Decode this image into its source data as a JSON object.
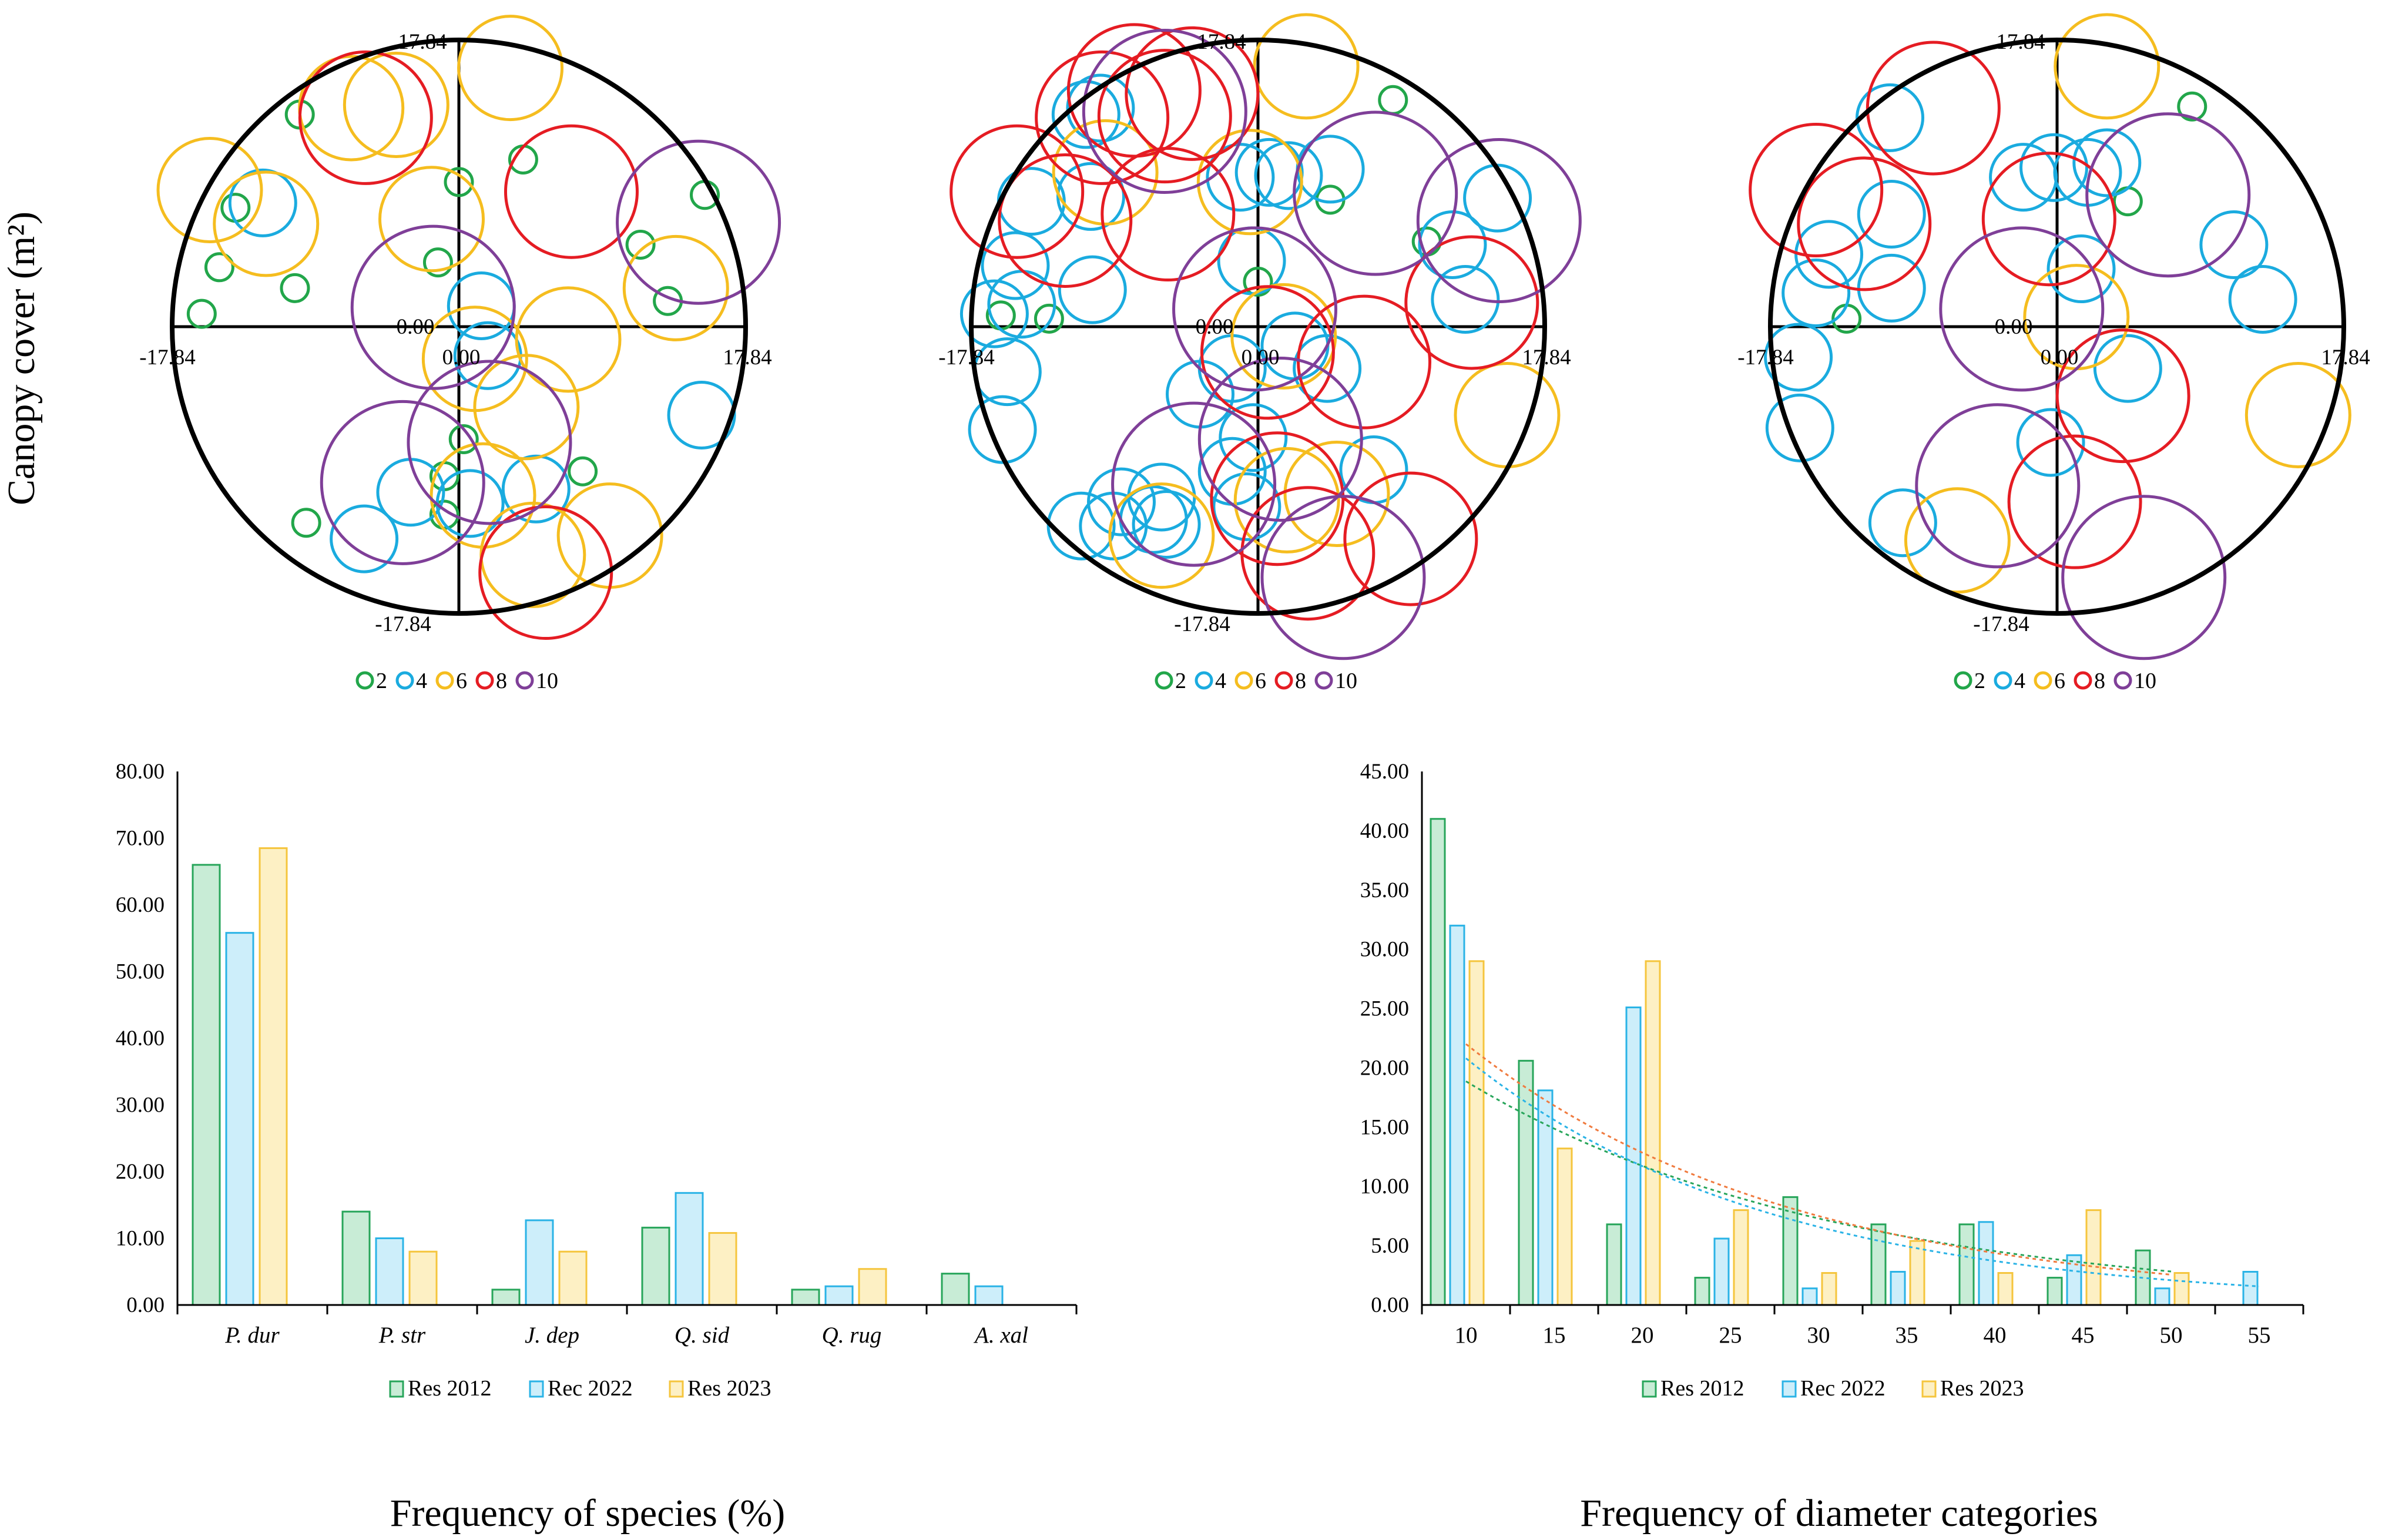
{
  "figure": {
    "y_axis_label": "Canopy cover (m²)",
    "caption_left": "Frequency of species (%)",
    "caption_right": "Frequency of diameter categories"
  },
  "colors": {
    "2": "#22a64a",
    "4": "#1aabdf",
    "6": "#f5bd1f",
    "8": "#e51c23",
    "10": "#7f3f98",
    "res2012_fill": "#c8ecd6",
    "res2012_stroke": "#27a55a",
    "rec2022_fill": "#cdeefa",
    "rec2022_stroke": "#2ab3e6",
    "res2023_fill": "#fdf0c4",
    "res2023_stroke": "#f5c53d",
    "trend_2012": "#27a55a",
    "trend_2022": "#2ab3e6",
    "trend_2023": "#f07a3e"
  },
  "chart_data": [
    {
      "type": "scatter",
      "subtype": "bubble-plot",
      "xlim": [
        -17.84,
        17.84
      ],
      "ylim": [
        -17.84,
        17.84
      ],
      "tick_labels": {
        "top": "17.84",
        "bottom": "-17.84",
        "left": "-17.84",
        "right": "17.84",
        "origin": "0.00"
      },
      "legend": [
        "2",
        "4",
        "6",
        "8",
        "10"
      ],
      "points": [
        {
          "x": -9.9,
          "y": 13.2,
          "size": "2"
        },
        {
          "x": -13.9,
          "y": 7.4,
          "size": "2"
        },
        {
          "x": -14.9,
          "y": 3.7,
          "size": "2"
        },
        {
          "x": -16.0,
          "y": 0.8,
          "size": "2"
        },
        {
          "x": -10.2,
          "y": 2.4,
          "size": "2"
        },
        {
          "x": -1.3,
          "y": 4.0,
          "size": "2"
        },
        {
          "x": 0.0,
          "y": 9.0,
          "size": "2"
        },
        {
          "x": 4.0,
          "y": 10.4,
          "size": "2"
        },
        {
          "x": 11.3,
          "y": 5.1,
          "size": "2"
        },
        {
          "x": 13.0,
          "y": 1.6,
          "size": "2"
        },
        {
          "x": 15.3,
          "y": 8.2,
          "size": "2"
        },
        {
          "x": 0.3,
          "y": -7.0,
          "size": "2"
        },
        {
          "x": -0.9,
          "y": -9.3,
          "size": "2"
        },
        {
          "x": -0.9,
          "y": -11.7,
          "size": "2"
        },
        {
          "x": 7.7,
          "y": -9.0,
          "size": "2"
        },
        {
          "x": -9.5,
          "y": -12.2,
          "size": "2"
        },
        {
          "x": -12.2,
          "y": 7.7,
          "size": "4"
        },
        {
          "x": 1.4,
          "y": 1.3,
          "size": "4"
        },
        {
          "x": 1.8,
          "y": -1.8,
          "size": "4"
        },
        {
          "x": 15.1,
          "y": -5.5,
          "size": "4"
        },
        {
          "x": -3.0,
          "y": -10.3,
          "size": "4"
        },
        {
          "x": -5.9,
          "y": -13.2,
          "size": "4"
        },
        {
          "x": 4.8,
          "y": -10.1,
          "size": "4"
        },
        {
          "x": 0.7,
          "y": -11.0,
          "size": "4"
        },
        {
          "x": -15.5,
          "y": 8.5,
          "size": "6"
        },
        {
          "x": -12.0,
          "y": 6.4,
          "size": "6"
        },
        {
          "x": -6.7,
          "y": 13.6,
          "size": "6"
        },
        {
          "x": -3.9,
          "y": 13.8,
          "size": "6"
        },
        {
          "x": -1.7,
          "y": 6.7,
          "size": "6"
        },
        {
          "x": 3.2,
          "y": 16.1,
          "size": "6"
        },
        {
          "x": 13.5,
          "y": 2.4,
          "size": "6"
        },
        {
          "x": 1.0,
          "y": -2.0,
          "size": "6"
        },
        {
          "x": 6.8,
          "y": -0.8,
          "size": "6"
        },
        {
          "x": 4.2,
          "y": -5.0,
          "size": "6"
        },
        {
          "x": 1.5,
          "y": -10.5,
          "size": "6"
        },
        {
          "x": 4.6,
          "y": -14.2,
          "size": "6"
        },
        {
          "x": 9.4,
          "y": -13.0,
          "size": "6"
        },
        {
          "x": -5.8,
          "y": 13.0,
          "size": "8"
        },
        {
          "x": 7.0,
          "y": 8.4,
          "size": "8"
        },
        {
          "x": 5.4,
          "y": -15.3,
          "size": "8"
        },
        {
          "x": -1.6,
          "y": 1.2,
          "size": "10"
        },
        {
          "x": 14.9,
          "y": 6.5,
          "size": "10"
        },
        {
          "x": -3.5,
          "y": -9.7,
          "size": "10"
        },
        {
          "x": 1.9,
          "y": -7.2,
          "size": "10"
        }
      ]
    },
    {
      "type": "scatter",
      "subtype": "bubble-plot",
      "xlim": [
        -17.84,
        17.84
      ],
      "ylim": [
        -17.84,
        17.84
      ],
      "tick_labels": {
        "top": "17.84",
        "bottom": "-17.84",
        "left": "-17.84",
        "right": "17.84",
        "origin": "0.00"
      },
      "legend": [
        "2",
        "4",
        "6",
        "8",
        "10"
      ],
      "points": [
        {
          "x": 8.4,
          "y": 14.1,
          "size": "2"
        },
        {
          "x": -16.0,
          "y": 0.7,
          "size": "2"
        },
        {
          "x": -13.0,
          "y": 0.5,
          "size": "2"
        },
        {
          "x": 4.5,
          "y": 7.9,
          "size": "2"
        },
        {
          "x": 10.5,
          "y": 5.3,
          "size": "2"
        },
        {
          "x": 0.0,
          "y": 2.8,
          "size": "2"
        },
        {
          "x": -10.7,
          "y": 13.2,
          "size": "4"
        },
        {
          "x": -9.8,
          "y": 13.6,
          "size": "4"
        },
        {
          "x": -14.1,
          "y": 7.8,
          "size": "4"
        },
        {
          "x": -10.4,
          "y": 8.1,
          "size": "4"
        },
        {
          "x": -15.1,
          "y": 3.8,
          "size": "4"
        },
        {
          "x": -16.4,
          "y": 0.8,
          "size": "4"
        },
        {
          "x": -14.7,
          "y": 1.4,
          "size": "4"
        },
        {
          "x": -15.6,
          "y": -2.8,
          "size": "4"
        },
        {
          "x": -15.9,
          "y": -6.4,
          "size": "4"
        },
        {
          "x": -10.3,
          "y": 2.3,
          "size": "4"
        },
        {
          "x": -1.1,
          "y": 9.3,
          "size": "4"
        },
        {
          "x": 0.7,
          "y": 9.6,
          "size": "4"
        },
        {
          "x": 1.9,
          "y": 9.4,
          "size": "4"
        },
        {
          "x": 4.5,
          "y": 9.8,
          "size": "4"
        },
        {
          "x": -0.4,
          "y": 4.1,
          "size": "4"
        },
        {
          "x": 14.9,
          "y": 8.0,
          "size": "4"
        },
        {
          "x": 12.1,
          "y": 5.1,
          "size": "4"
        },
        {
          "x": 12.9,
          "y": 1.7,
          "size": "4"
        },
        {
          "x": -3.6,
          "y": -4.2,
          "size": "4"
        },
        {
          "x": -1.6,
          "y": -2.6,
          "size": "4"
        },
        {
          "x": 2.3,
          "y": -1.2,
          "size": "4"
        },
        {
          "x": 4.3,
          "y": -2.6,
          "size": "4"
        },
        {
          "x": -0.3,
          "y": -6.9,
          "size": "4"
        },
        {
          "x": -1.6,
          "y": -9.0,
          "size": "4"
        },
        {
          "x": -0.7,
          "y": -11.2,
          "size": "4"
        },
        {
          "x": 7.2,
          "y": -8.9,
          "size": "4"
        },
        {
          "x": -11.0,
          "y": -12.4,
          "size": "4"
        },
        {
          "x": -9.0,
          "y": -12.4,
          "size": "4"
        },
        {
          "x": -8.5,
          "y": -10.9,
          "size": "4"
        },
        {
          "x": -6.5,
          "y": -12.0,
          "size": "4"
        },
        {
          "x": -6.0,
          "y": -10.6,
          "size": "4"
        },
        {
          "x": -5.7,
          "y": -12.3,
          "size": "4"
        },
        {
          "x": -9.5,
          "y": 9.6,
          "size": "6"
        },
        {
          "x": -0.5,
          "y": 9.0,
          "size": "6"
        },
        {
          "x": 3.0,
          "y": 16.2,
          "size": "6"
        },
        {
          "x": 1.6,
          "y": -0.6,
          "size": "6"
        },
        {
          "x": 15.5,
          "y": -5.5,
          "size": "6"
        },
        {
          "x": 1.8,
          "y": -10.8,
          "size": "6"
        },
        {
          "x": -6.0,
          "y": -13.0,
          "size": "6"
        },
        {
          "x": 4.9,
          "y": -10.4,
          "size": "6"
        },
        {
          "x": -15.0,
          "y": 8.4,
          "size": "8"
        },
        {
          "x": -12.0,
          "y": 6.6,
          "size": "8"
        },
        {
          "x": -9.7,
          "y": 13.0,
          "size": "8"
        },
        {
          "x": -7.7,
          "y": 14.7,
          "size": "8"
        },
        {
          "x": -5.8,
          "y": 13.1,
          "size": "8"
        },
        {
          "x": -4.1,
          "y": 14.5,
          "size": "8"
        },
        {
          "x": -5.6,
          "y": 7.0,
          "size": "8"
        },
        {
          "x": 0.6,
          "y": -1.6,
          "size": "8"
        },
        {
          "x": 6.6,
          "y": -2.2,
          "size": "8"
        },
        {
          "x": 13.3,
          "y": 1.5,
          "size": "8"
        },
        {
          "x": 1.2,
          "y": -10.7,
          "size": "8"
        },
        {
          "x": 3.1,
          "y": -14.1,
          "size": "8"
        },
        {
          "x": 9.5,
          "y": -13.2,
          "size": "8"
        },
        {
          "x": -5.8,
          "y": 13.4,
          "size": "10"
        },
        {
          "x": 7.3,
          "y": 8.3,
          "size": "10"
        },
        {
          "x": 15.0,
          "y": 6.6,
          "size": "10"
        },
        {
          "x": -0.2,
          "y": 1.1,
          "size": "10"
        },
        {
          "x": 1.4,
          "y": -7.0,
          "size": "10"
        },
        {
          "x": -4.0,
          "y": -9.8,
          "size": "10"
        },
        {
          "x": 5.3,
          "y": -15.6,
          "size": "10"
        }
      ]
    },
    {
      "type": "scatter",
      "subtype": "bubble-plot",
      "xlim": [
        -17.84,
        17.84
      ],
      "ylim": [
        -17.84,
        17.84
      ],
      "tick_labels": {
        "top": "17.84",
        "bottom": "-17.84",
        "left": "-17.84",
        "right": "17.84",
        "origin": "0.00"
      },
      "legend": [
        "2",
        "4",
        "6",
        "8",
        "10"
      ],
      "points": [
        {
          "x": 8.4,
          "y": 13.7,
          "size": "2"
        },
        {
          "x": 4.4,
          "y": 7.8,
          "size": "2"
        },
        {
          "x": -13.1,
          "y": 0.5,
          "size": "2"
        },
        {
          "x": -10.4,
          "y": 13.0,
          "size": "4"
        },
        {
          "x": -10.3,
          "y": 7.0,
          "size": "4"
        },
        {
          "x": -14.2,
          "y": 4.5,
          "size": "4"
        },
        {
          "x": -15.0,
          "y": 2.1,
          "size": "4"
        },
        {
          "x": -10.3,
          "y": 2.4,
          "size": "4"
        },
        {
          "x": -16.1,
          "y": -1.9,
          "size": "4"
        },
        {
          "x": -16.0,
          "y": -6.3,
          "size": "4"
        },
        {
          "x": -2.1,
          "y": 9.3,
          "size": "4"
        },
        {
          "x": -0.2,
          "y": 9.9,
          "size": "4"
        },
        {
          "x": 1.9,
          "y": 9.6,
          "size": "4"
        },
        {
          "x": 3.1,
          "y": 10.2,
          "size": "4"
        },
        {
          "x": 11.0,
          "y": 5.1,
          "size": "4"
        },
        {
          "x": 12.8,
          "y": 1.7,
          "size": "4"
        },
        {
          "x": 1.5,
          "y": 3.6,
          "size": "4"
        },
        {
          "x": 4.4,
          "y": -2.6,
          "size": "4"
        },
        {
          "x": -0.4,
          "y": -7.2,
          "size": "4"
        },
        {
          "x": -9.6,
          "y": -12.2,
          "size": "4"
        },
        {
          "x": 3.1,
          "y": 16.2,
          "size": "6"
        },
        {
          "x": 1.2,
          "y": 0.6,
          "size": "6"
        },
        {
          "x": 15.0,
          "y": -5.5,
          "size": "6"
        },
        {
          "x": -6.2,
          "y": -13.3,
          "size": "6"
        },
        {
          "x": -15.0,
          "y": 8.5,
          "size": "8"
        },
        {
          "x": -7.7,
          "y": 13.6,
          "size": "8"
        },
        {
          "x": -12.0,
          "y": 6.4,
          "size": "8"
        },
        {
          "x": -0.5,
          "y": 6.7,
          "size": "8"
        },
        {
          "x": 4.1,
          "y": -4.3,
          "size": "8"
        },
        {
          "x": 1.1,
          "y": -10.9,
          "size": "8"
        },
        {
          "x": -2.2,
          "y": 1.1,
          "size": "10"
        },
        {
          "x": 6.9,
          "y": 8.2,
          "size": "10"
        },
        {
          "x": -3.7,
          "y": -9.9,
          "size": "10"
        },
        {
          "x": 5.4,
          "y": -15.6,
          "size": "10"
        }
      ]
    },
    {
      "type": "bar",
      "categories": [
        "P. dur",
        "P. str",
        "J. dep",
        "Q. sid",
        "Q. rug",
        "A. xal"
      ],
      "series": [
        {
          "name": "Res 2012",
          "values": [
            66.0,
            14.0,
            2.3,
            11.6,
            2.3,
            4.7
          ]
        },
        {
          "name": "Rec 2022",
          "values": [
            55.8,
            10.0,
            12.7,
            16.8,
            2.8,
            2.8
          ]
        },
        {
          "name": "Res 2023",
          "values": [
            68.5,
            8.0,
            8.0,
            10.8,
            5.4,
            0
          ]
        }
      ],
      "ylim": [
        0,
        80
      ],
      "yticks": [
        "0.00",
        "10.00",
        "20.00",
        "30.00",
        "40.00",
        "50.00",
        "60.00",
        "70.00",
        "80.00"
      ],
      "legend_position": "bottom",
      "xlabel": "Frequency of species (%)",
      "grid": false
    },
    {
      "type": "bar",
      "categories": [
        "10",
        "15",
        "20",
        "25",
        "30",
        "35",
        "40",
        "45",
        "50",
        "55"
      ],
      "series": [
        {
          "name": "Res 2012",
          "values": [
            41.0,
            20.6,
            6.8,
            2.3,
            9.1,
            6.8,
            6.8,
            2.3,
            4.6,
            0
          ]
        },
        {
          "name": "Rec 2022",
          "values": [
            32.0,
            18.1,
            25.1,
            5.6,
            1.4,
            2.8,
            7.0,
            4.2,
            1.4,
            2.8
          ]
        },
        {
          "name": "Res 2023",
          "values": [
            29.0,
            13.2,
            29.0,
            8.0,
            2.7,
            5.4,
            2.7,
            8.0,
            2.7,
            0
          ]
        }
      ],
      "trendlines": "exponential, dotted, one per series",
      "ylim": [
        0,
        45
      ],
      "yticks": [
        "0.00",
        "5.00",
        "10.00",
        "15.00",
        "20.00",
        "25.00",
        "30.00",
        "35.00",
        "40.00",
        "45.00"
      ],
      "legend_position": "bottom",
      "xlabel": "Frequency of diameter categories",
      "grid": false
    }
  ]
}
